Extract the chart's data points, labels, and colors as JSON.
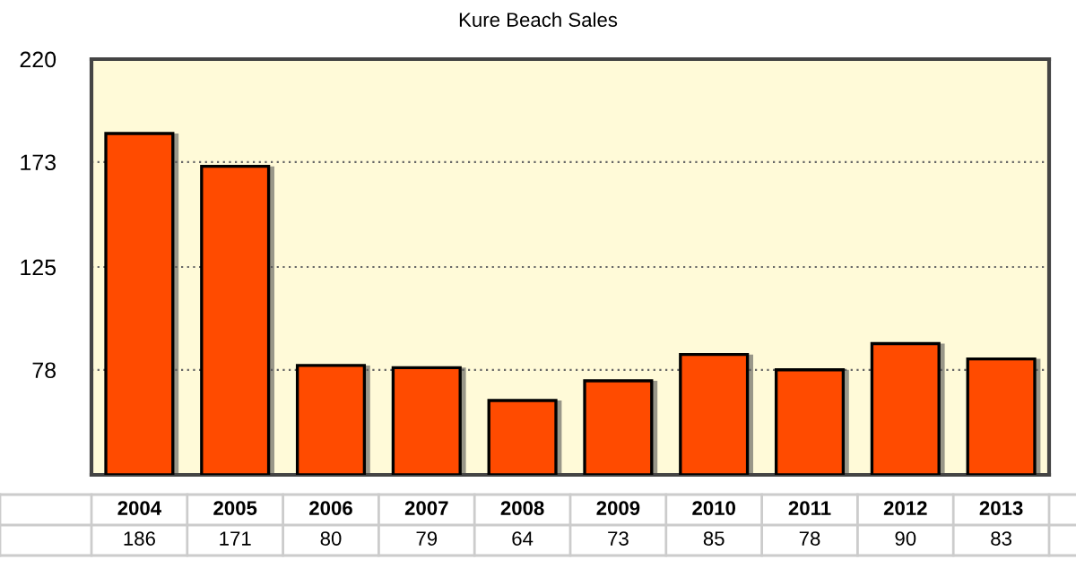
{
  "chart_data": {
    "type": "bar",
    "title": "Kure Beach Sales",
    "categories": [
      "2004",
      "2005",
      "2006",
      "2007",
      "2008",
      "2009",
      "2010",
      "2011",
      "2012",
      "2013"
    ],
    "values": [
      186,
      171,
      80,
      79,
      64,
      73,
      85,
      78,
      90,
      83
    ],
    "color": "#ff4b00",
    "ylim": [
      30,
      220
    ],
    "yticks": [
      78,
      125,
      173,
      220
    ],
    "grid": "y",
    "data_labels": true
  }
}
